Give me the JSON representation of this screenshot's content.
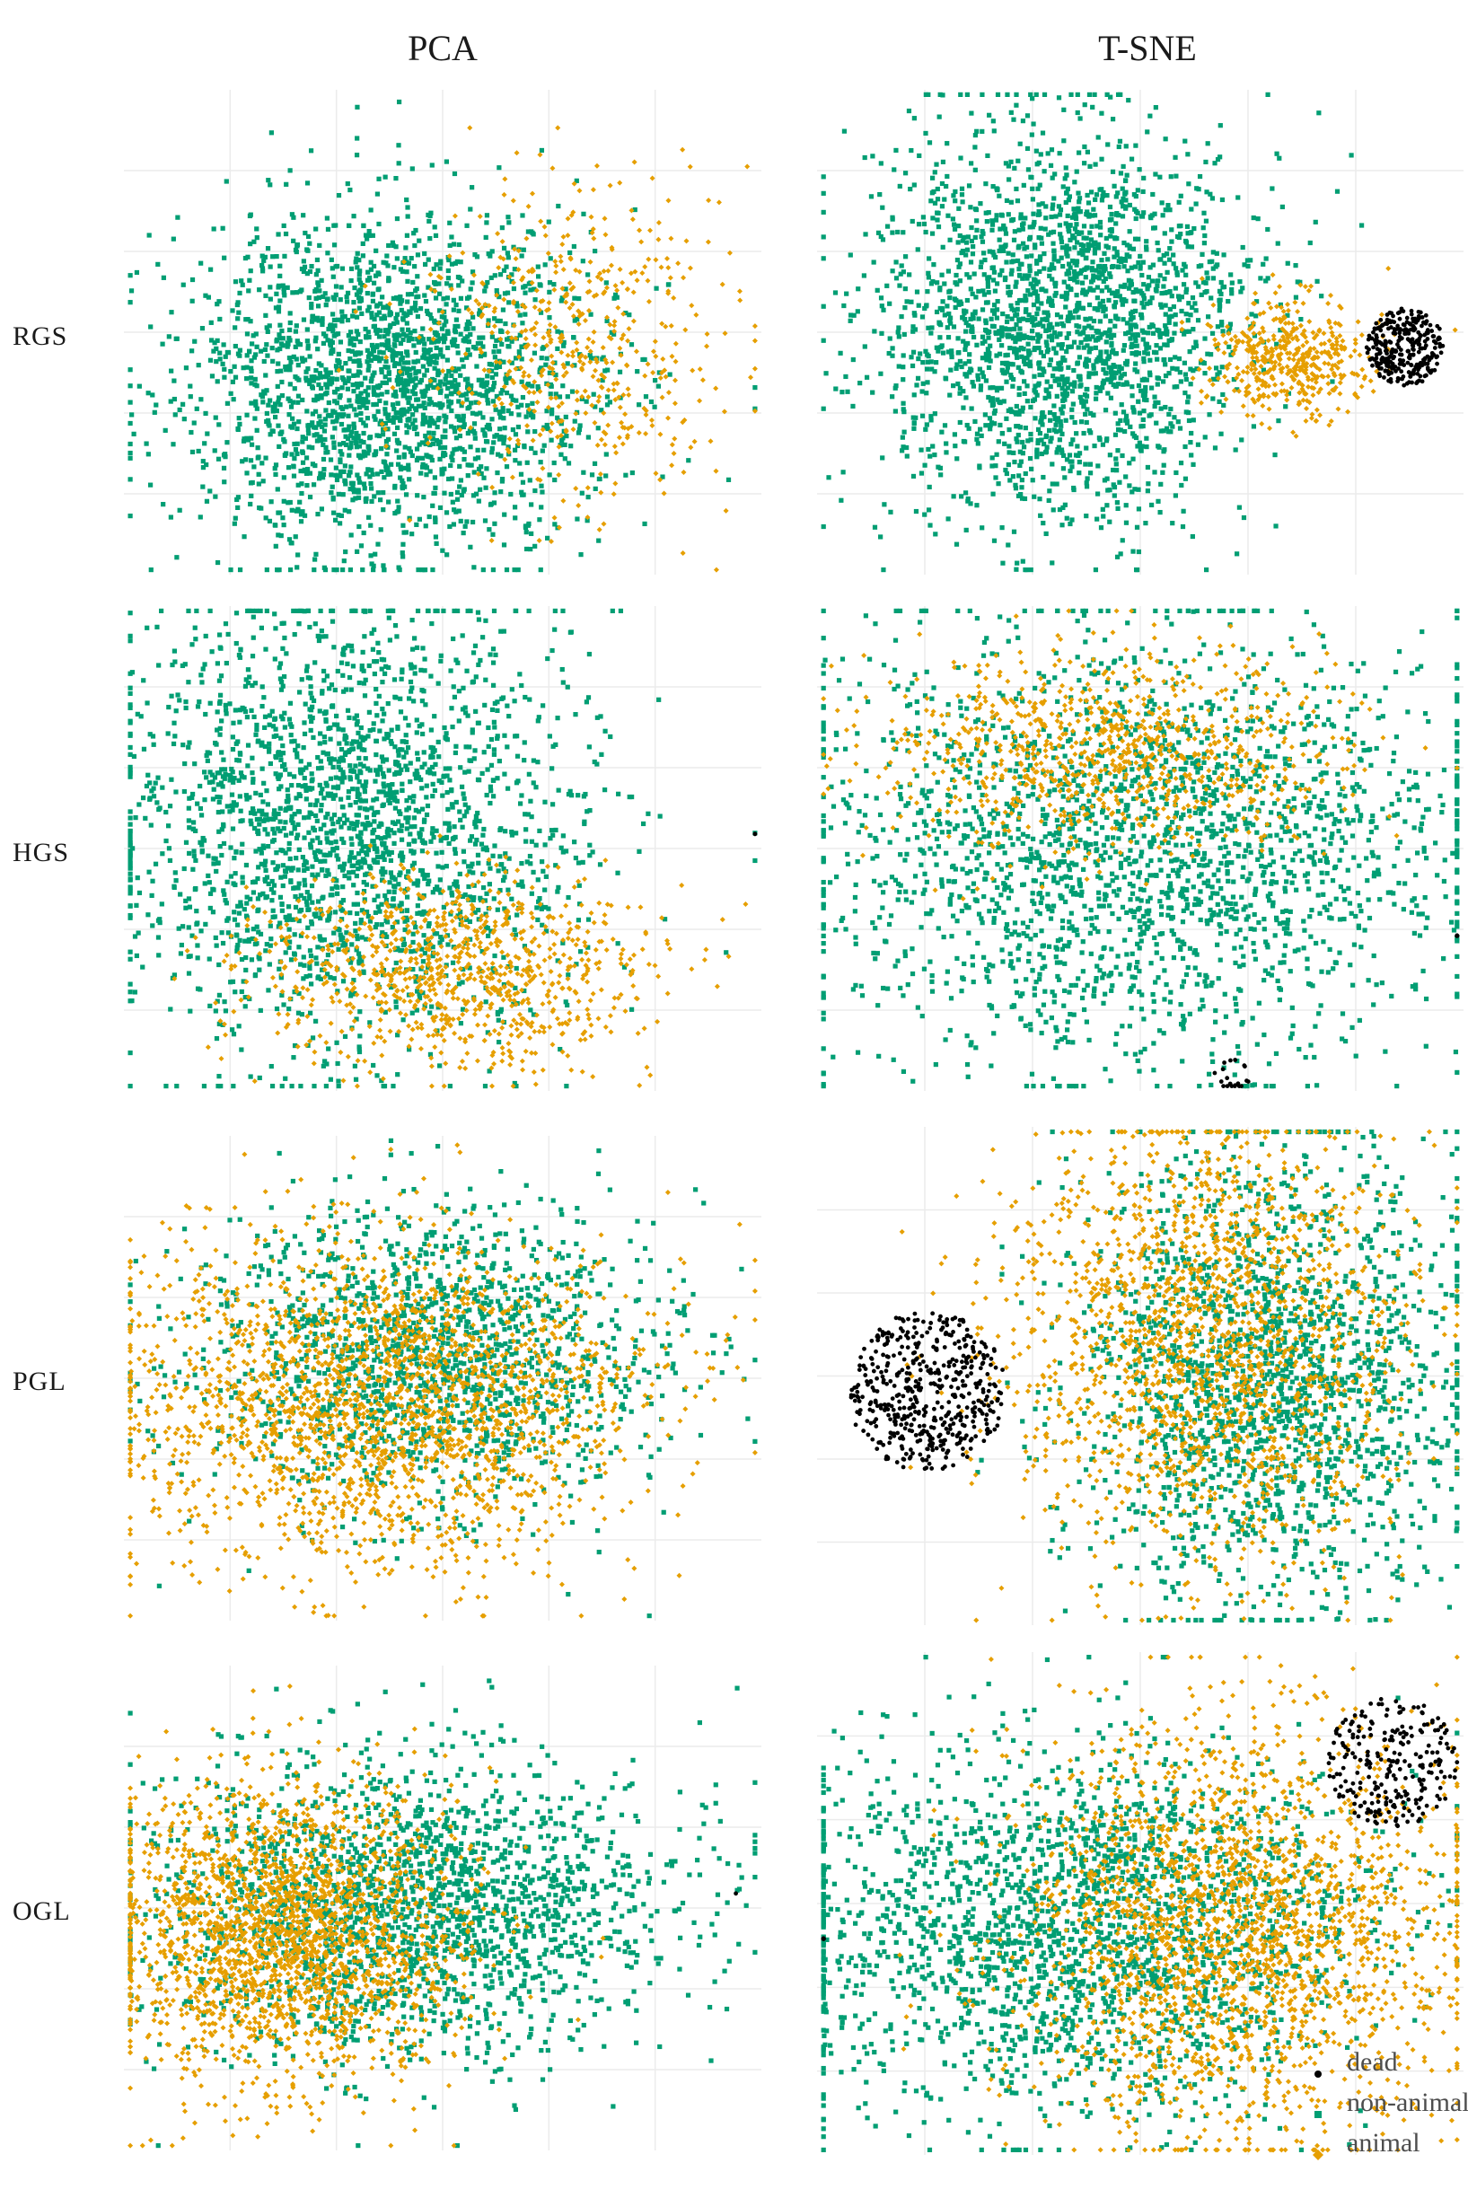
{
  "columns": {
    "pca": "PCA",
    "tsne": "T-SNE"
  },
  "rows": [
    "RGS",
    "HGS",
    "PGL",
    "OGL"
  ],
  "legend": [
    {
      "label": "dead",
      "color": "#000000",
      "shape": "circle"
    },
    {
      "label": "non-animal",
      "color": "#009E73",
      "shape": "square"
    },
    {
      "label": "animal",
      "color": "#E69F00",
      "shape": "diamond"
    }
  ],
  "chart_data": [
    {
      "type": "scatter",
      "row": "RGS",
      "method": "PCA",
      "grid": true,
      "axis_labels_shown": false,
      "series": [
        {
          "name": "non-animal",
          "approx_points": 4000,
          "clusters": [
            {
              "cx": 0.42,
              "cy": 0.6,
              "sx": 0.16,
              "sy": 0.17
            }
          ]
        },
        {
          "name": "animal",
          "approx_points": 500,
          "clusters": [
            {
              "cx": 0.7,
              "cy": 0.52,
              "sx": 0.12,
              "sy": 0.16
            }
          ]
        }
      ]
    },
    {
      "type": "scatter",
      "row": "RGS",
      "method": "T-SNE",
      "grid": true,
      "axis_labels_shown": false,
      "series": [
        {
          "name": "non-animal",
          "approx_points": 4000,
          "clusters": [
            {
              "cx": 0.38,
              "cy": 0.48,
              "sx": 0.14,
              "sy": 0.2
            }
          ]
        },
        {
          "name": "animal",
          "approx_points": 450,
          "clusters": [
            {
              "cx": 0.73,
              "cy": 0.55,
              "sx": 0.06,
              "sy": 0.06
            }
          ]
        },
        {
          "name": "dead",
          "approx_points": 300,
          "clusters": [
            {
              "cx": 0.91,
              "cy": 0.53,
              "r": 0.08
            }
          ]
        }
      ]
    },
    {
      "type": "scatter",
      "row": "HGS",
      "method": "PCA",
      "grid": true,
      "axis_labels_shown": false,
      "series": [
        {
          "name": "non-animal",
          "approx_points": 4000,
          "clusters": [
            {
              "cx": 0.35,
              "cy": 0.45,
              "sx": 0.18,
              "sy": 0.22
            }
          ]
        },
        {
          "name": "animal",
          "approx_points": 900,
          "clusters": [
            {
              "cx": 0.52,
              "cy": 0.75,
              "sx": 0.15,
              "sy": 0.1
            }
          ]
        },
        {
          "name": "dead",
          "approx_points": 2,
          "clusters": [
            {
              "cx": 0.99,
              "cy": 0.47
            }
          ]
        }
      ]
    },
    {
      "type": "scatter",
      "row": "HGS",
      "method": "T-SNE",
      "grid": true,
      "axis_labels_shown": false,
      "series": [
        {
          "name": "non-animal",
          "approx_points": 3500,
          "clusters": [
            {
              "cx": 0.5,
              "cy": 0.5,
              "sx": 0.25,
              "sy": 0.22
            }
          ]
        },
        {
          "name": "animal",
          "approx_points": 900,
          "clusters": [
            {
              "cx": 0.45,
              "cy": 0.3,
              "sx": 0.18,
              "sy": 0.1
            }
          ]
        },
        {
          "name": "dead",
          "approx_points": 40,
          "clusters": [
            {
              "cx": 0.64,
              "cy": 0.97,
              "r": 0.04
            },
            {
              "cx": 0.99,
              "cy": 0.68,
              "r": 0.01
            }
          ]
        }
      ]
    },
    {
      "type": "scatter",
      "row": "PGL",
      "method": "PCA",
      "grid": true,
      "axis_labels_shown": false,
      "series": [
        {
          "name": "non-animal",
          "approx_points": 1500,
          "clusters": [
            {
              "cx": 0.48,
              "cy": 0.45,
              "sx": 0.18,
              "sy": 0.15
            }
          ]
        },
        {
          "name": "animal",
          "approx_points": 3000,
          "clusters": [
            {
              "cx": 0.4,
              "cy": 0.55,
              "sx": 0.2,
              "sy": 0.17
            }
          ]
        }
      ]
    },
    {
      "type": "scatter",
      "row": "PGL",
      "method": "T-SNE",
      "grid": true,
      "axis_labels_shown": false,
      "series": [
        {
          "name": "non-animal",
          "approx_points": 1800,
          "clusters": [
            {
              "cx": 0.7,
              "cy": 0.5,
              "sx": 0.15,
              "sy": 0.22
            }
          ]
        },
        {
          "name": "animal",
          "approx_points": 1800,
          "clusters": [
            {
              "cx": 0.6,
              "cy": 0.42,
              "sx": 0.15,
              "sy": 0.22
            }
          ]
        },
        {
          "name": "dead",
          "approx_points": 500,
          "clusters": [
            {
              "cx": 0.17,
              "cy": 0.53,
              "r": 0.16
            }
          ]
        }
      ]
    },
    {
      "type": "scatter",
      "row": "OGL",
      "method": "PCA",
      "grid": true,
      "axis_labels_shown": false,
      "series": [
        {
          "name": "non-animal",
          "approx_points": 2000,
          "clusters": [
            {
              "cx": 0.45,
              "cy": 0.5,
              "sx": 0.2,
              "sy": 0.15
            }
          ]
        },
        {
          "name": "animal",
          "approx_points": 3000,
          "clusters": [
            {
              "cx": 0.25,
              "cy": 0.55,
              "sx": 0.14,
              "sy": 0.15
            }
          ]
        },
        {
          "name": "dead",
          "approx_points": 1,
          "clusters": [
            {
              "cx": 0.96,
              "cy": 0.47
            }
          ]
        }
      ]
    },
    {
      "type": "scatter",
      "row": "OGL",
      "method": "T-SNE",
      "grid": true,
      "axis_labels_shown": false,
      "series": [
        {
          "name": "non-animal",
          "approx_points": 2500,
          "clusters": [
            {
              "cx": 0.4,
              "cy": 0.55,
              "sx": 0.22,
              "sy": 0.18
            }
          ]
        },
        {
          "name": "animal",
          "approx_points": 2500,
          "clusters": [
            {
              "cx": 0.65,
              "cy": 0.55,
              "sx": 0.17,
              "sy": 0.2
            }
          ]
        },
        {
          "name": "dead",
          "approx_points": 500,
          "clusters": [
            {
              "cx": 0.89,
              "cy": 0.22,
              "r": 0.13
            },
            {
              "cx": 0.01,
              "cy": 0.57,
              "r": 0.01
            }
          ]
        }
      ]
    }
  ]
}
